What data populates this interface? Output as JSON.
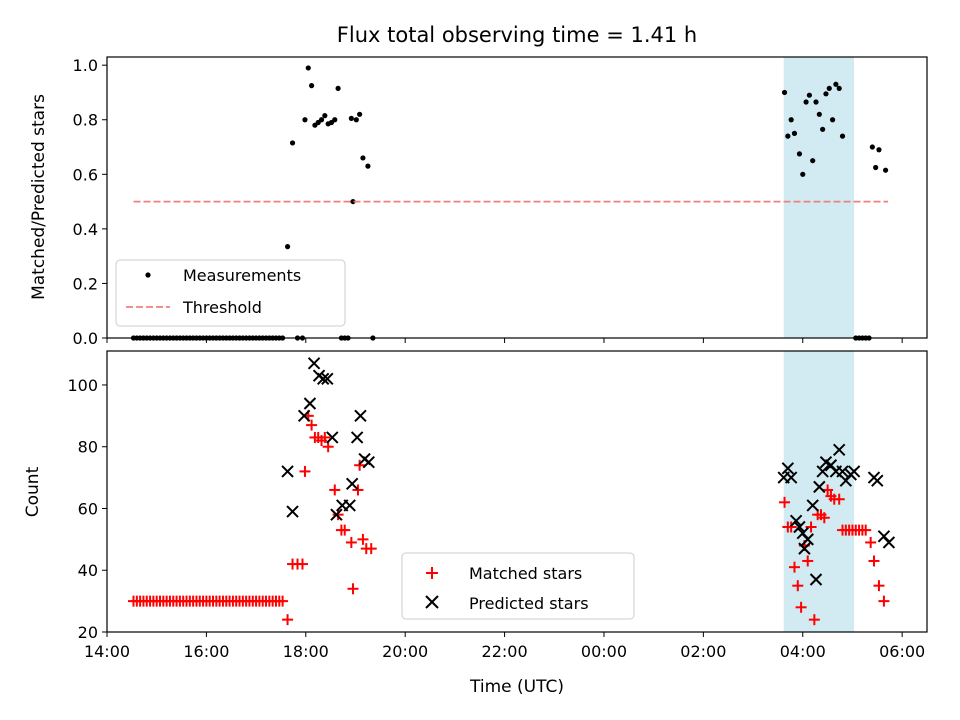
{
  "chart_data": [
    {
      "type": "scatter",
      "title": "Flux total observing time = 1.41 h",
      "ylabel": "Matched/Predicted stars",
      "xlabel": "",
      "xlim": [
        "14:00",
        "06:30"
      ],
      "ylim": [
        0,
        1.03
      ],
      "yticks": [
        "0.0",
        "0.2",
        "0.4",
        "0.6",
        "0.8",
        "1.0"
      ],
      "highlight_span": {
        "start": "03:37",
        "end": "05:02",
        "color": "#add8e6"
      },
      "grid": false,
      "legend_position": "lower-left",
      "series": [
        {
          "name": "Measurements",
          "marker": "dot",
          "color": "#000000",
          "points": [
            [
              "14:32",
              0
            ],
            [
              "14:36",
              0
            ],
            [
              "14:40",
              0
            ],
            [
              "14:44",
              0
            ],
            [
              "14:48",
              0
            ],
            [
              "14:52",
              0
            ],
            [
              "14:56",
              0
            ],
            [
              "15:00",
              0
            ],
            [
              "15:04",
              0
            ],
            [
              "15:08",
              0
            ],
            [
              "15:12",
              0
            ],
            [
              "15:16",
              0
            ],
            [
              "15:20",
              0
            ],
            [
              "15:24",
              0
            ],
            [
              "15:28",
              0
            ],
            [
              "15:32",
              0
            ],
            [
              "15:36",
              0
            ],
            [
              "15:40",
              0
            ],
            [
              "15:44",
              0
            ],
            [
              "15:48",
              0
            ],
            [
              "15:52",
              0
            ],
            [
              "15:56",
              0
            ],
            [
              "16:00",
              0
            ],
            [
              "16:04",
              0
            ],
            [
              "16:08",
              0
            ],
            [
              "16:12",
              0
            ],
            [
              "16:16",
              0
            ],
            [
              "16:20",
              0
            ],
            [
              "16:24",
              0
            ],
            [
              "16:28",
              0
            ],
            [
              "16:32",
              0
            ],
            [
              "16:36",
              0
            ],
            [
              "16:40",
              0
            ],
            [
              "16:44",
              0
            ],
            [
              "16:48",
              0
            ],
            [
              "16:52",
              0
            ],
            [
              "16:56",
              0
            ],
            [
              "17:00",
              0
            ],
            [
              "17:04",
              0
            ],
            [
              "17:08",
              0
            ],
            [
              "17:12",
              0
            ],
            [
              "17:16",
              0
            ],
            [
              "17:20",
              0
            ],
            [
              "17:24",
              0
            ],
            [
              "17:28",
              0
            ],
            [
              "17:32",
              0
            ],
            [
              "17:38",
              0.335
            ],
            [
              "17:44",
              0.715
            ],
            [
              "17:50",
              0
            ],
            [
              "17:56",
              0
            ],
            [
              "17:59",
              0.8
            ],
            [
              "18:03",
              0.99
            ],
            [
              "18:07",
              0.925
            ],
            [
              "18:11",
              0.78
            ],
            [
              "18:15",
              0.79
            ],
            [
              "18:19",
              0.8
            ],
            [
              "18:23",
              0.815
            ],
            [
              "18:27",
              0.785
            ],
            [
              "18:31",
              0.79
            ],
            [
              "18:35",
              0.8
            ],
            [
              "18:39",
              0.915
            ],
            [
              "18:43",
              0
            ],
            [
              "18:47",
              0
            ],
            [
              "18:51",
              0
            ],
            [
              "18:55",
              0.805
            ],
            [
              "18:57",
              0.5
            ],
            [
              "19:01",
              0.8
            ],
            [
              "19:05",
              0.82
            ],
            [
              "19:09",
              0.66
            ],
            [
              "19:15",
              0.63
            ],
            [
              "19:21",
              0
            ],
            [
              "03:38",
              0.9
            ],
            [
              "03:42",
              0.74
            ],
            [
              "03:46",
              0.8
            ],
            [
              "03:50",
              0.75
            ],
            [
              "03:56",
              0.675
            ],
            [
              "04:00",
              0.6
            ],
            [
              "04:04",
              0.865
            ],
            [
              "04:08",
              0.89
            ],
            [
              "04:12",
              0.65
            ],
            [
              "04:16",
              0.865
            ],
            [
              "04:20",
              0.82
            ],
            [
              "04:24",
              0.765
            ],
            [
              "04:28",
              0.895
            ],
            [
              "04:32",
              0.915
            ],
            [
              "04:36",
              0.8
            ],
            [
              "04:40",
              0.93
            ],
            [
              "04:44",
              0.915
            ],
            [
              "04:48",
              0.74
            ],
            [
              "05:04",
              0
            ],
            [
              "05:08",
              0
            ],
            [
              "05:12",
              0
            ],
            [
              "05:16",
              0
            ],
            [
              "05:20",
              0
            ],
            [
              "05:24",
              0.7
            ],
            [
              "05:28",
              0.625
            ],
            [
              "05:32",
              0.69
            ],
            [
              "05:40",
              0.615
            ]
          ]
        },
        {
          "name": "Threshold",
          "marker": "dashed-line",
          "color": "#f08080",
          "points": [
            [
              "14:32",
              0.5
            ],
            [
              "05:43",
              0.5
            ]
          ]
        }
      ]
    },
    {
      "type": "scatter",
      "title": "",
      "ylabel": "Count",
      "xlabel": "Time (UTC)",
      "xlim": [
        "14:00",
        "06:30"
      ],
      "ylim": [
        20,
        111
      ],
      "xticks": [
        "14:00",
        "16:00",
        "18:00",
        "20:00",
        "22:00",
        "00:00",
        "02:00",
        "04:00",
        "06:00"
      ],
      "yticks": [
        "20",
        "40",
        "60",
        "80",
        "100"
      ],
      "highlight_span": {
        "start": "03:37",
        "end": "05:02",
        "color": "#add8e6"
      },
      "grid": false,
      "legend_position": "lower-center",
      "series": [
        {
          "name": "Matched stars",
          "marker": "plus",
          "color": "#ff0000",
          "points": [
            [
              "14:32",
              30
            ],
            [
              "14:36",
              30
            ],
            [
              "14:40",
              30
            ],
            [
              "14:44",
              30
            ],
            [
              "14:48",
              30
            ],
            [
              "14:52",
              30
            ],
            [
              "14:56",
              30
            ],
            [
              "15:00",
              30
            ],
            [
              "15:04",
              30
            ],
            [
              "15:08",
              30
            ],
            [
              "15:12",
              30
            ],
            [
              "15:16",
              30
            ],
            [
              "15:20",
              30
            ],
            [
              "15:24",
              30
            ],
            [
              "15:28",
              30
            ],
            [
              "15:32",
              30
            ],
            [
              "15:36",
              30
            ],
            [
              "15:40",
              30
            ],
            [
              "15:44",
              30
            ],
            [
              "15:48",
              30
            ],
            [
              "15:52",
              30
            ],
            [
              "15:56",
              30
            ],
            [
              "16:00",
              30
            ],
            [
              "16:04",
              30
            ],
            [
              "16:08",
              30
            ],
            [
              "16:12",
              30
            ],
            [
              "16:16",
              30
            ],
            [
              "16:20",
              30
            ],
            [
              "16:24",
              30
            ],
            [
              "16:28",
              30
            ],
            [
              "16:32",
              30
            ],
            [
              "16:36",
              30
            ],
            [
              "16:40",
              30
            ],
            [
              "16:44",
              30
            ],
            [
              "16:48",
              30
            ],
            [
              "16:52",
              30
            ],
            [
              "16:56",
              30
            ],
            [
              "17:00",
              30
            ],
            [
              "17:04",
              30
            ],
            [
              "17:08",
              30
            ],
            [
              "17:12",
              30
            ],
            [
              "17:16",
              30
            ],
            [
              "17:20",
              30
            ],
            [
              "17:24",
              30
            ],
            [
              "17:28",
              30
            ],
            [
              "17:32",
              30
            ],
            [
              "17:38",
              24
            ],
            [
              "17:44",
              42
            ],
            [
              "17:50",
              42
            ],
            [
              "17:56",
              42
            ],
            [
              "17:59",
              72
            ],
            [
              "18:03",
              90
            ],
            [
              "18:07",
              87
            ],
            [
              "18:11",
              83
            ],
            [
              "18:15",
              83
            ],
            [
              "18:19",
              82
            ],
            [
              "18:23",
              83
            ],
            [
              "18:27",
              80
            ],
            [
              "18:35",
              66
            ],
            [
              "18:39",
              58
            ],
            [
              "18:43",
              53
            ],
            [
              "18:47",
              53
            ],
            [
              "18:55",
              49
            ],
            [
              "18:57",
              34
            ],
            [
              "19:03",
              66
            ],
            [
              "19:05",
              74
            ],
            [
              "19:09",
              50
            ],
            [
              "19:13",
              47
            ],
            [
              "19:19",
              47
            ],
            [
              "03:38",
              62
            ],
            [
              "03:42",
              54
            ],
            [
              "03:46",
              54
            ],
            [
              "03:50",
              41
            ],
            [
              "03:54",
              35
            ],
            [
              "03:58",
              28
            ],
            [
              "04:02",
              48
            ],
            [
              "04:06",
              43
            ],
            [
              "04:10",
              54
            ],
            [
              "04:14",
              24
            ],
            [
              "04:18",
              58
            ],
            [
              "04:22",
              58
            ],
            [
              "04:26",
              57
            ],
            [
              "04:30",
              66
            ],
            [
              "04:34",
              64
            ],
            [
              "04:38",
              63
            ],
            [
              "04:44",
              63
            ],
            [
              "04:48",
              53
            ],
            [
              "04:52",
              53
            ],
            [
              "04:56",
              53
            ],
            [
              "05:00",
              53
            ],
            [
              "05:04",
              53
            ],
            [
              "05:08",
              53
            ],
            [
              "05:12",
              53
            ],
            [
              "05:16",
              53
            ],
            [
              "05:22",
              49
            ],
            [
              "05:26",
              43
            ],
            [
              "05:32",
              35
            ],
            [
              "05:38",
              30
            ]
          ]
        },
        {
          "name": "Predicted stars",
          "marker": "x",
          "color": "#000000",
          "points": [
            [
              "17:38",
              72
            ],
            [
              "17:44",
              59
            ],
            [
              "17:58",
              90
            ],
            [
              "18:05",
              94
            ],
            [
              "18:10",
              107
            ],
            [
              "18:16",
              103
            ],
            [
              "18:21",
              102
            ],
            [
              "18:26",
              102
            ],
            [
              "18:32",
              83
            ],
            [
              "18:37",
              58
            ],
            [
              "18:44",
              61
            ],
            [
              "18:53",
              61
            ],
            [
              "18:56",
              68
            ],
            [
              "19:02",
              83
            ],
            [
              "19:06",
              90
            ],
            [
              "19:11",
              76
            ],
            [
              "19:16",
              75
            ],
            [
              "03:37",
              70
            ],
            [
              "03:42",
              73
            ],
            [
              "03:46",
              70
            ],
            [
              "03:52",
              56
            ],
            [
              "03:56",
              54
            ],
            [
              "04:00",
              52
            ],
            [
              "04:02",
              47
            ],
            [
              "04:06",
              50
            ],
            [
              "04:12",
              61
            ],
            [
              "04:16",
              37
            ],
            [
              "04:20",
              67
            ],
            [
              "04:24",
              72
            ],
            [
              "04:28",
              75
            ],
            [
              "04:34",
              74
            ],
            [
              "04:40",
              72
            ],
            [
              "04:44",
              79
            ],
            [
              "04:48",
              72
            ],
            [
              "04:52",
              69
            ],
            [
              "04:58",
              71
            ],
            [
              "05:02",
              72
            ],
            [
              "05:26",
              70
            ],
            [
              "05:30",
              69
            ],
            [
              "05:38",
              51
            ],
            [
              "05:44",
              49
            ]
          ]
        }
      ]
    }
  ]
}
